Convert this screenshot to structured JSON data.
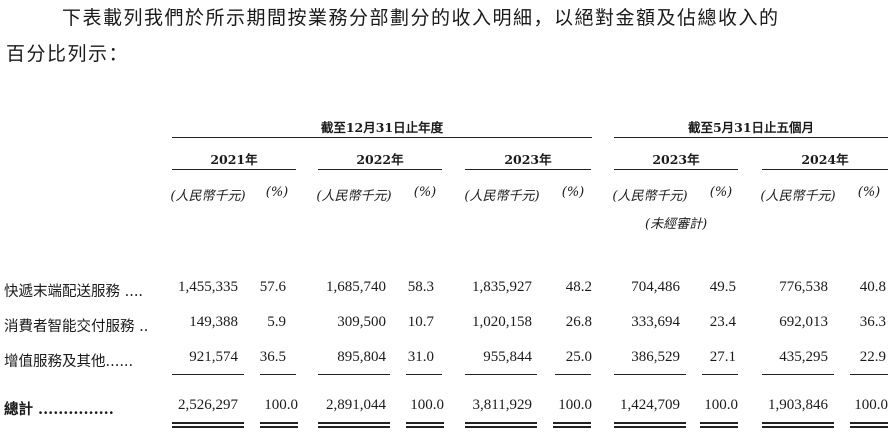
{
  "intro": {
    "line1": "下表載列我們於所示期間按業務分部劃分的收入明細，以絕對金額及佔總收入的",
    "line2": "百分比列示："
  },
  "periods": {
    "year_end": "截至12月31日止年度",
    "five_months": "截至5月31日止五個月"
  },
  "years": [
    "2021年",
    "2022年",
    "2023年",
    "2023年",
    "2024年"
  ],
  "units": {
    "amount": "(人民幣千元)",
    "percent": "(%)",
    "unaudited": "(未經審計)"
  },
  "rows": [
    {
      "label": "快遞末端配送服務 ....",
      "values": [
        "1,455,335",
        "57.6",
        "1,685,740",
        "58.3",
        "1,835,927",
        "48.2",
        "704,486",
        "49.5",
        "776,538",
        "40.8"
      ]
    },
    {
      "label": "消費者智能交付服務 ..",
      "values": [
        "149,388",
        "5.9",
        "309,500",
        "10.7",
        "1,020,158",
        "26.8",
        "333,694",
        "23.4",
        "692,013",
        "36.3"
      ]
    },
    {
      "label": "增值服務及其他......",
      "values": [
        "921,574",
        "36.5",
        "895,804",
        "31.0",
        "955,844",
        "25.0",
        "386,529",
        "27.1",
        "435,295",
        "22.9"
      ]
    },
    {
      "label": "總計 ...............",
      "values": [
        "2,526,297",
        "100.0",
        "2,891,044",
        "100.0",
        "3,811,929",
        "100.0",
        "1,424,709",
        "100.0",
        "1,903,846",
        "100.0"
      ]
    }
  ]
}
